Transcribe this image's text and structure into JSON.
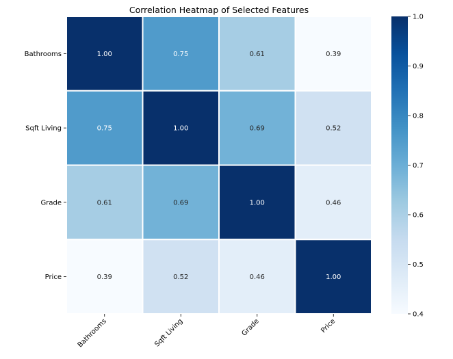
{
  "chart_data": {
    "type": "heatmap",
    "title": "Correlation Heatmap of Selected Features",
    "xlabel": "",
    "ylabel": "",
    "x_categories": [
      "Bathrooms",
      "Sqft Living",
      "Grade",
      "Price"
    ],
    "y_categories": [
      "Bathrooms",
      "Sqft Living",
      "Grade",
      "Price"
    ],
    "values": [
      [
        1.0,
        0.75,
        0.61,
        0.39
      ],
      [
        0.75,
        1.0,
        0.69,
        0.52
      ],
      [
        0.61,
        0.69,
        1.0,
        0.46
      ],
      [
        0.39,
        0.52,
        0.46,
        1.0
      ]
    ],
    "value_format": "0.00",
    "colormap": "Blues",
    "color_range": [
      0.4,
      1.0
    ],
    "colorbar_ticks": [
      "1.0",
      "0.9",
      "0.8",
      "0.7",
      "0.6",
      "0.5",
      "0.4"
    ],
    "colorbar_tick_values": [
      1.0,
      0.9,
      0.8,
      0.7,
      0.6,
      0.5,
      0.4
    ],
    "grid": true,
    "grid_color": "#ffffff",
    "legend": "colorbar-right",
    "x_tick_rotation_deg": -45
  }
}
